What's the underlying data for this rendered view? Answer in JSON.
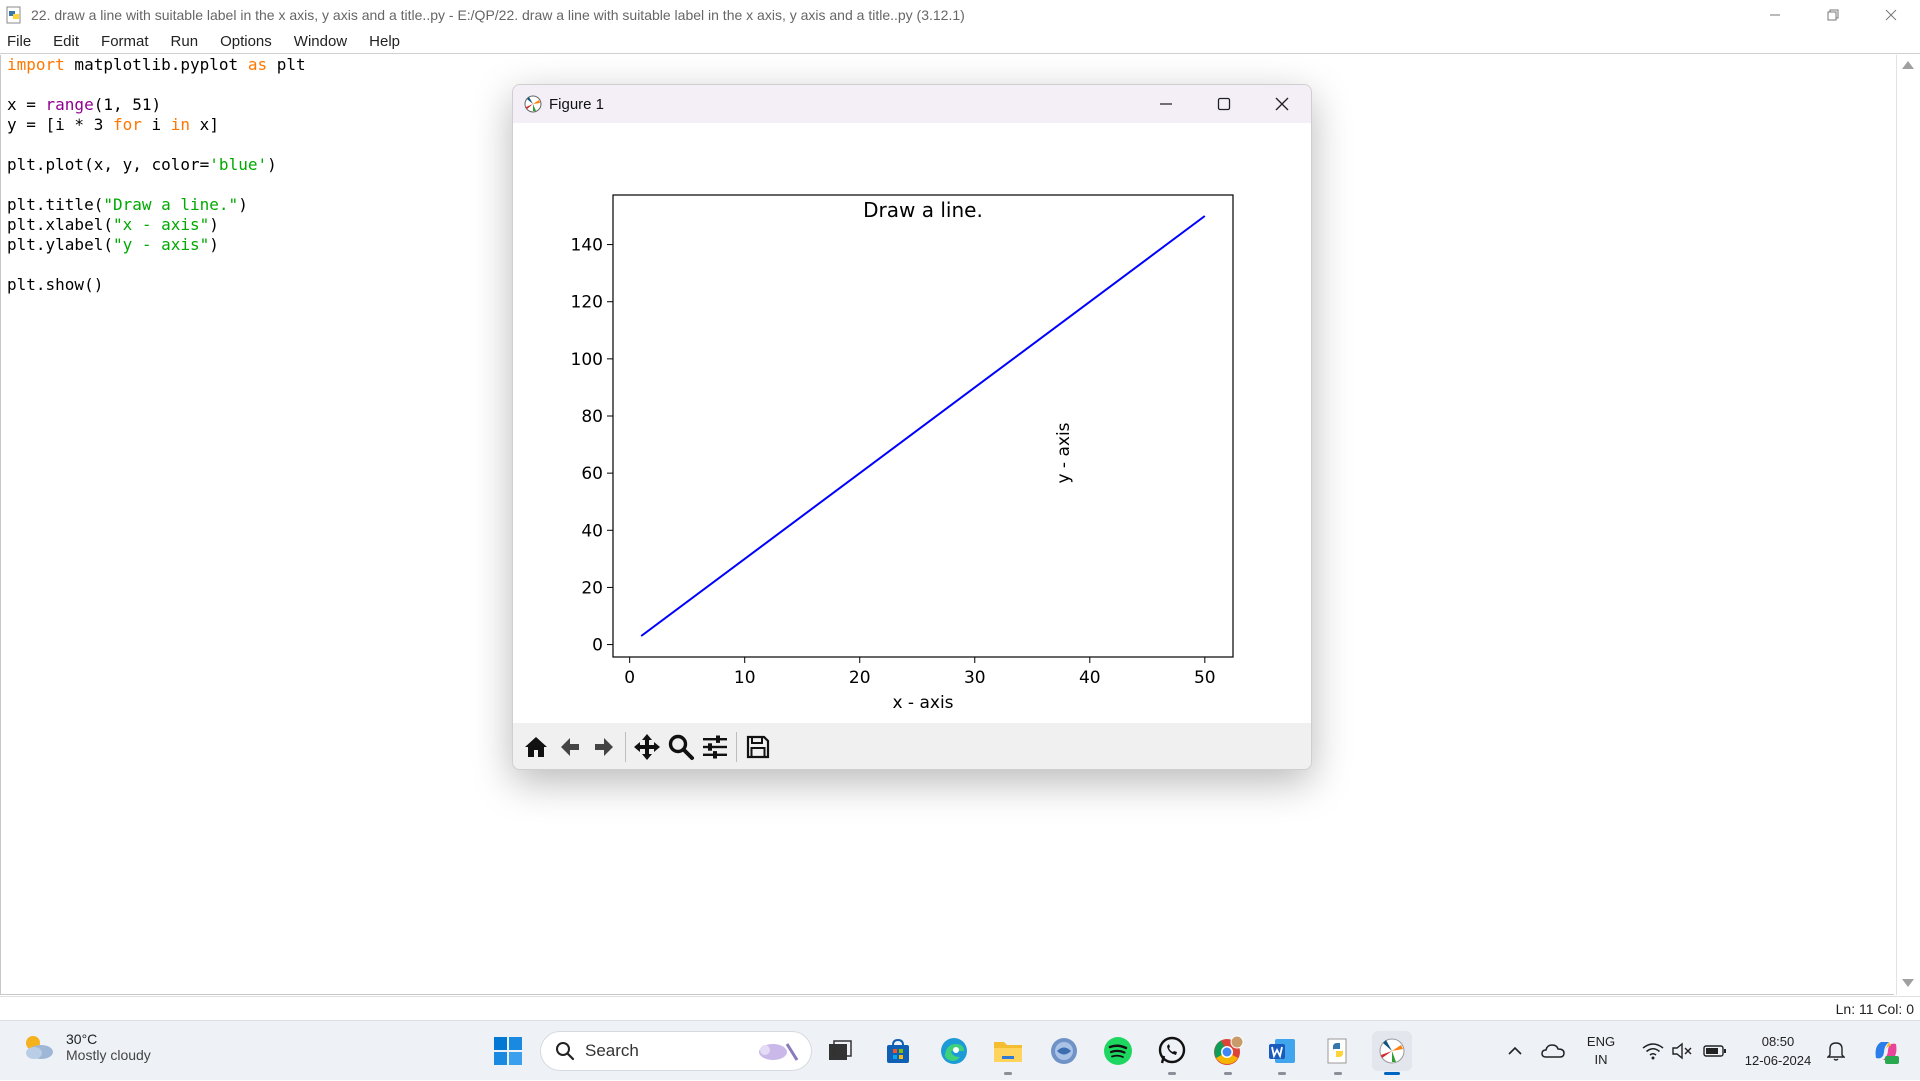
{
  "window": {
    "title": "22. draw a line with suitable label in the x axis, y axis and a title..py - E:/QP/22. draw a line with suitable label in the x axis, y axis and a title..py (3.12.1)"
  },
  "menu": [
    "File",
    "Edit",
    "Format",
    "Run",
    "Options",
    "Window",
    "Help"
  ],
  "code_lines": [
    [
      {
        "t": "import",
        "c": "kw"
      },
      {
        "t": " matplotlib.pyplot ",
        "c": ""
      },
      {
        "t": "as",
        "c": "kw"
      },
      {
        "t": " plt",
        "c": ""
      }
    ],
    [],
    [
      {
        "t": "x = ",
        "c": ""
      },
      {
        "t": "range",
        "c": "bi"
      },
      {
        "t": "(1, 51)",
        "c": ""
      }
    ],
    [
      {
        "t": "y = [i * 3 ",
        "c": ""
      },
      {
        "t": "for",
        "c": "kw"
      },
      {
        "t": " i ",
        "c": ""
      },
      {
        "t": "in",
        "c": "kw"
      },
      {
        "t": " x]",
        "c": ""
      }
    ],
    [],
    [
      {
        "t": "plt.plot(x, y, color=",
        "c": ""
      },
      {
        "t": "'blue'",
        "c": "st"
      },
      {
        "t": ")",
        "c": ""
      }
    ],
    [],
    [
      {
        "t": "plt.title(",
        "c": ""
      },
      {
        "t": "\"Draw a line.\"",
        "c": "st"
      },
      {
        "t": ")",
        "c": ""
      }
    ],
    [
      {
        "t": "plt.xlabel(",
        "c": ""
      },
      {
        "t": "\"x - axis\"",
        "c": "st"
      },
      {
        "t": ")",
        "c": ""
      }
    ],
    [
      {
        "t": "plt.ylabel(",
        "c": ""
      },
      {
        "t": "\"y - axis\"",
        "c": "st"
      },
      {
        "t": ")",
        "c": ""
      }
    ],
    [],
    [
      {
        "t": "plt.show()",
        "c": ""
      }
    ]
  ],
  "status": {
    "position": "Ln: 11   Col: 0"
  },
  "figure": {
    "title": "Figure 1",
    "toolbar": [
      "home-icon",
      "back-icon",
      "forward-icon",
      "pan-icon",
      "zoom-icon",
      "configure-icon",
      "save-icon"
    ]
  },
  "chart_data": {
    "type": "line",
    "title": "Draw a line.",
    "xlabel": "x - axis",
    "ylabel": "y - axis",
    "x": [
      1,
      50
    ],
    "series": [
      {
        "values": [
          3,
          150
        ],
        "color": "#0000ff"
      }
    ],
    "xlim": [
      -1.45,
      52.45
    ],
    "ylim": [
      -4.35,
      157.35
    ],
    "xticks": [
      0,
      10,
      20,
      30,
      40,
      50
    ],
    "yticks": [
      0,
      20,
      40,
      60,
      80,
      100,
      120,
      140
    ],
    "grid": false,
    "legend": "none"
  },
  "taskbar": {
    "weather": {
      "temp": "30°C",
      "condition": "Mostly cloudy"
    },
    "search_placeholder": "Search",
    "apps": [
      "start-icon",
      "task-view-icon",
      "store-icon",
      "edge-icon",
      "file-explorer-icon",
      "python-icon",
      "spotify-icon",
      "whatsapp-icon",
      "chrome-icon",
      "word-icon",
      "idle-icon",
      "matplotlib-icon"
    ],
    "lang": {
      "line1": "ENG",
      "line2": "IN"
    },
    "clock": {
      "time": "08:50",
      "date": "12-06-2024"
    }
  }
}
